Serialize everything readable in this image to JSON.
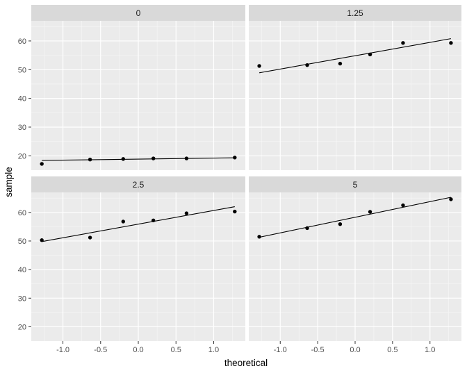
{
  "chart_data": {
    "type": "scatter",
    "title": "",
    "xlabel": "theoretical",
    "ylabel": "sample",
    "xlim": [
      -1.42,
      1.42
    ],
    "ylim": [
      15,
      67
    ],
    "x_ticks": [
      -1.0,
      -0.5,
      0.0,
      0.5,
      1.0
    ],
    "x_tick_labels": [
      "-1.0",
      "-0.5",
      "0.0",
      "0.5",
      "1.0"
    ],
    "y_ticks": [
      20,
      30,
      40,
      50,
      60
    ],
    "y_tick_labels": [
      "20",
      "30",
      "40",
      "50",
      "60"
    ],
    "grid": true,
    "facets": [
      {
        "label": "0",
        "points": [
          {
            "x": -1.28,
            "y": 17.2
          },
          {
            "x": -0.64,
            "y": 18.7
          },
          {
            "x": -0.2,
            "y": 18.9
          },
          {
            "x": 0.2,
            "y": 19.1
          },
          {
            "x": 0.64,
            "y": 19.1
          },
          {
            "x": 1.28,
            "y": 19.4
          }
        ],
        "line": {
          "x": [
            -1.28,
            1.28
          ],
          "y": [
            18.4,
            19.3
          ]
        }
      },
      {
        "label": "1.25",
        "points": [
          {
            "x": -1.28,
            "y": 51.3
          },
          {
            "x": -0.64,
            "y": 51.6
          },
          {
            "x": -0.2,
            "y": 52.1
          },
          {
            "x": 0.2,
            "y": 55.3
          },
          {
            "x": 0.64,
            "y": 59.3
          },
          {
            "x": 1.28,
            "y": 59.3
          }
        ],
        "line": {
          "x": [
            -1.28,
            1.28
          ],
          "y": [
            48.9,
            60.8
          ]
        }
      },
      {
        "label": "2.5",
        "points": [
          {
            "x": -1.28,
            "y": 50.3
          },
          {
            "x": -0.64,
            "y": 51.2
          },
          {
            "x": -0.2,
            "y": 56.8
          },
          {
            "x": 0.2,
            "y": 57.2
          },
          {
            "x": 0.64,
            "y": 59.7
          },
          {
            "x": 1.28,
            "y": 60.3
          }
        ],
        "line": {
          "x": [
            -1.28,
            1.28
          ],
          "y": [
            49.8,
            62.0
          ]
        }
      },
      {
        "label": "5",
        "points": [
          {
            "x": -1.28,
            "y": 51.5
          },
          {
            "x": -0.64,
            "y": 54.5
          },
          {
            "x": -0.2,
            "y": 55.9
          },
          {
            "x": 0.2,
            "y": 60.2
          },
          {
            "x": 0.64,
            "y": 62.5
          },
          {
            "x": 1.28,
            "y": 64.6
          }
        ],
        "line": {
          "x": [
            -1.28,
            1.28
          ],
          "y": [
            51.3,
            65.3
          ]
        }
      }
    ]
  }
}
